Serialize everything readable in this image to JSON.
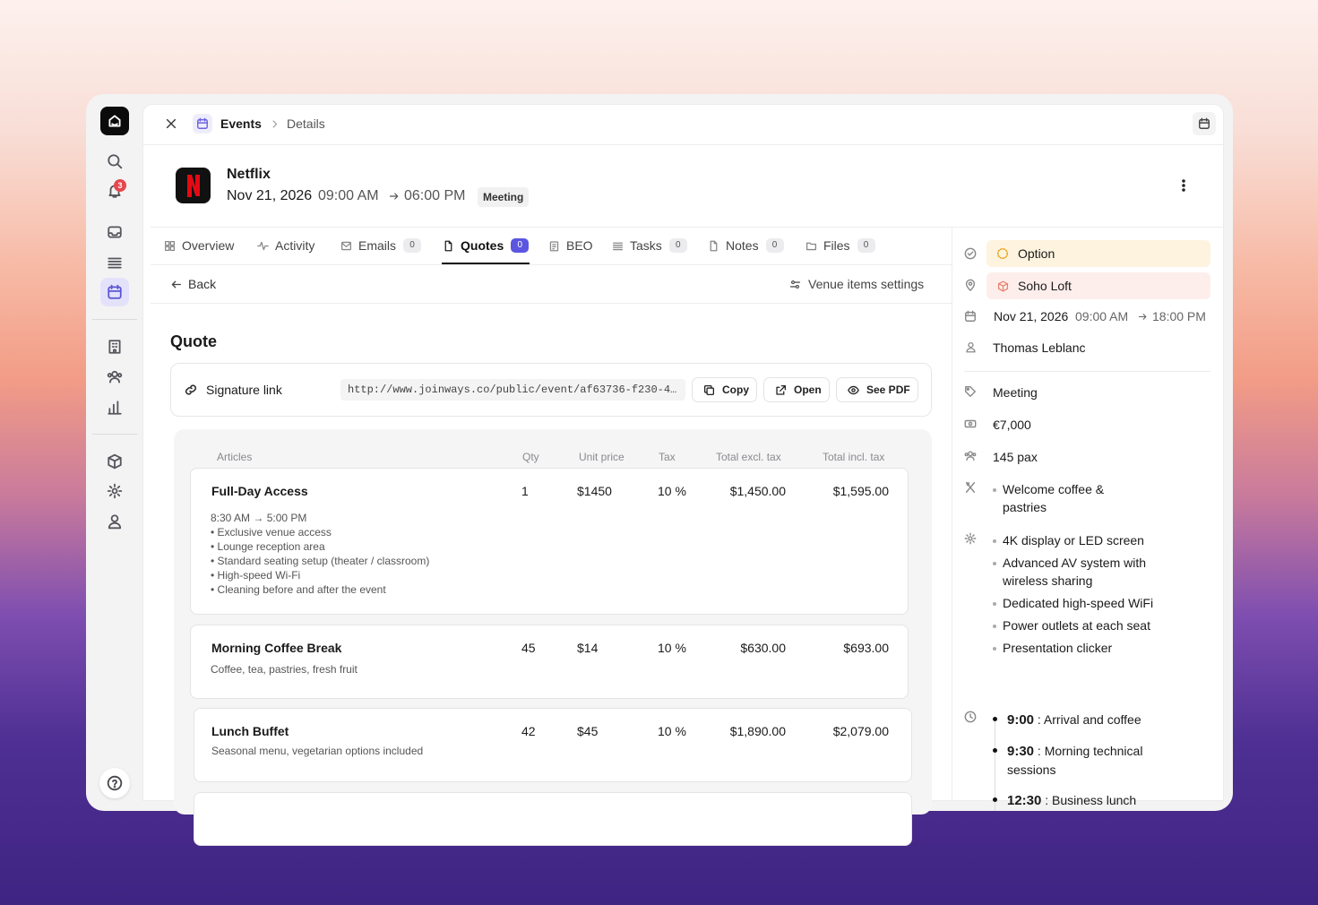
{
  "sidebar": {
    "notification_count": 3
  },
  "breadcrumb": {
    "section": "Events",
    "page": "Details"
  },
  "event": {
    "name": "Netflix",
    "date": "Nov 21, 2026",
    "time_start": "09:00 AM",
    "time_end": "06:00 PM",
    "tag": "Meeting"
  },
  "tabs": [
    {
      "label": "Overview"
    },
    {
      "label": "Activity"
    },
    {
      "label": "Emails",
      "count": 0
    },
    {
      "label": "Quotes",
      "count": 0,
      "active": true
    },
    {
      "label": "BEO"
    },
    {
      "label": "Tasks",
      "count": 0
    },
    {
      "label": "Notes",
      "count": 0
    },
    {
      "label": "Files",
      "count": 0
    }
  ],
  "toolbar": {
    "back": "Back",
    "settings": "Venue items settings"
  },
  "quote": {
    "title": "Quote",
    "signature_label": "Signature link",
    "url": "http://www.joinways.co/public/event/af63736-f230-4…",
    "actions": [
      "Copy",
      "Open",
      "See PDF"
    ],
    "columns": [
      "Articles",
      "Qty",
      "Unit price",
      "Tax",
      "Total excl. tax",
      "Total incl. tax"
    ],
    "items": [
      {
        "name": "Full-Day Access",
        "qty": "1",
        "unit_price": "$1450",
        "tax": "10 %",
        "total_excl": "$1,450.00",
        "total_incl": "$1,595.00",
        "details": [
          "8:30 AM → 5:00 PM",
          "• Exclusive venue access",
          "• Lounge reception area",
          "• Standard seating setup (theater / classroom)",
          "• High-speed Wi-Fi",
          "• Cleaning before and after the event"
        ]
      },
      {
        "name": "Morning Coffee Break",
        "qty": "45",
        "unit_price": "$14",
        "tax": "10 %",
        "total_excl": "$630.00",
        "total_incl": "$693.00",
        "details": [
          "Coffee, tea, pastries, fresh fruit"
        ]
      },
      {
        "name": "Lunch Buffet",
        "qty": "42",
        "unit_price": "$45",
        "tax": "10 %",
        "total_excl": "$1,890.00",
        "total_incl": "$2,079.00",
        "details": [
          "Seasonal menu, vegetarian options included"
        ]
      }
    ]
  },
  "details": {
    "status": "Option",
    "venue": "Soho Loft",
    "date": "Nov 21, 2026",
    "time_start": "09:00 AM",
    "time_end": "18:00 PM",
    "owner": "Thomas Leblanc",
    "type": "Meeting",
    "budget": "€7,000",
    "pax": "145 pax",
    "catering": [
      "Welcome coffee & pastries"
    ],
    "equipment": [
      "4K display or LED screen",
      "Advanced AV system with wireless sharing",
      "Dedicated high-speed WiFi",
      "Power outlets at each seat",
      "Presentation clicker"
    ],
    "schedule": [
      {
        "time": "9:00",
        "activity": ": Arrival and coffee"
      },
      {
        "time": "9:30",
        "activity": ": Morning technical sessions"
      },
      {
        "time": "12:30",
        "activity": ": Business lunch"
      }
    ]
  }
}
